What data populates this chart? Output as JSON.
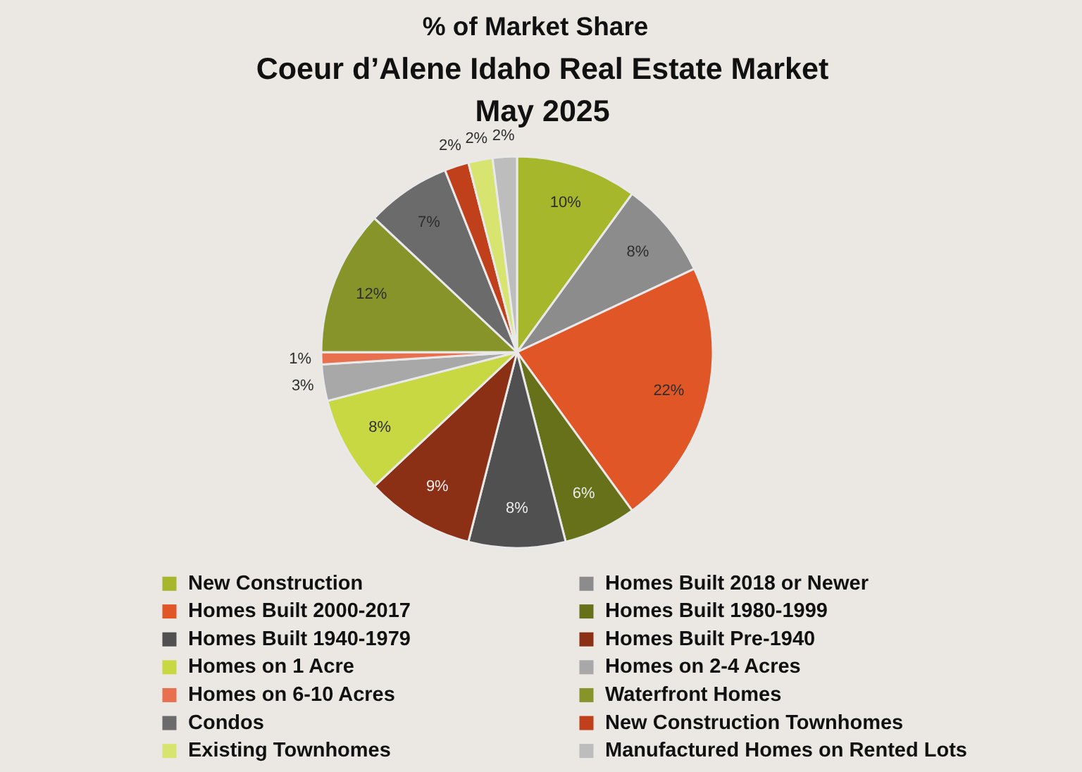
{
  "chart_data": {
    "type": "pie",
    "subtitle": "% of Market Share",
    "title": "Coeur d’Alene Idaho Real Estate Market\nMay 2025",
    "categories": [
      "New Construction",
      "Homes Built 2018 or Newer",
      "Homes Built 2000-2017",
      "Homes Built 1980-1999",
      "Homes Built 1940-1979",
      "Homes Built Pre-1940",
      "Homes on 1 Acre",
      "Homes on 2-4 Acres",
      "Homes on 6-10 Acres",
      "Waterfront Homes",
      "Condos",
      "New Construction Townhomes",
      "Existing Townhomes",
      "Manufactured Homes on Rented Lots"
    ],
    "values": [
      10,
      8,
      22,
      6,
      8,
      9,
      8,
      3,
      1,
      12,
      7,
      2,
      2,
      2
    ],
    "colors": [
      "#a6b72b",
      "#8c8c8c",
      "#e05627",
      "#667119",
      "#505050",
      "#8b2f15",
      "#c8d842",
      "#a8a8a8",
      "#e8704f",
      "#879429",
      "#6b6b6b",
      "#c0401c",
      "#d7e46f",
      "#bdbdbd"
    ],
    "value_labels": [
      "10%",
      "8%",
      "22%",
      "6%",
      "8%",
      "9%",
      "8%",
      "3%",
      "1%",
      "12%",
      "7%",
      "2%",
      "2%",
      "2%"
    ],
    "legend": "bottom"
  }
}
